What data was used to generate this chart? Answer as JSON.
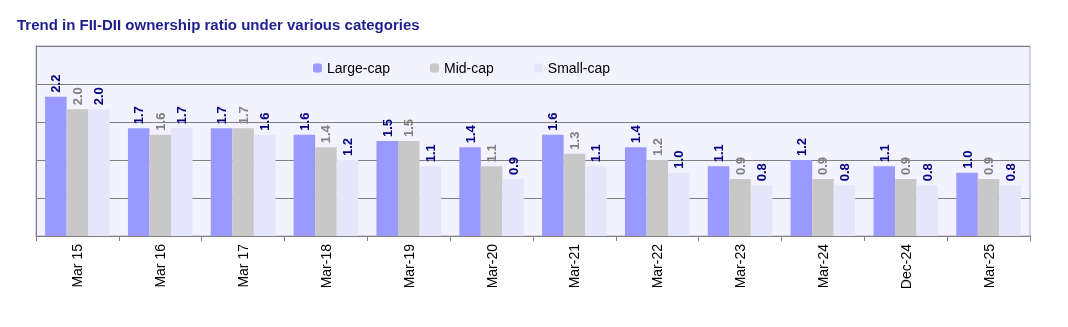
{
  "chart_data": {
    "type": "bar",
    "title": "Trend in FII-DII ownership ratio under various categories",
    "categories": [
      "Mar 15",
      "Mar 16",
      "Mar 17",
      "Mar-18",
      "Mar-19",
      "Mar-20",
      "Mar-21",
      "Mar-22",
      "Mar-23",
      "Mar-24",
      "Dec-24",
      "Mar-25"
    ],
    "series": [
      {
        "name": "Large-cap",
        "color": "#9999ff",
        "values": [
          2.2,
          1.7,
          1.7,
          1.6,
          1.5,
          1.4,
          1.6,
          1.4,
          1.1,
          1.2,
          1.1,
          1.0
        ],
        "value_labels": [
          "2.2",
          "1.7",
          "1.7",
          "1.6",
          "1.5",
          "1.4",
          "1.6",
          "1.4",
          "1.1",
          "1.2",
          "1.1",
          "1.0"
        ]
      },
      {
        "name": "Mid-cap",
        "color": "#c8c8c8",
        "values": [
          2.0,
          1.6,
          1.7,
          1.4,
          1.5,
          1.1,
          1.3,
          1.2,
          0.9,
          0.9,
          0.9,
          0.9
        ],
        "value_labels": [
          "2.0",
          "1.6",
          "1.7",
          "1.4",
          "1.5",
          "1.1",
          "1.3",
          "1.2",
          "0.9",
          "0.9",
          "0.9",
          "0.9"
        ]
      },
      {
        "name": "Small-cap",
        "color": "#e6e6fa",
        "values": [
          2.0,
          1.7,
          1.6,
          1.2,
          1.1,
          0.9,
          1.1,
          1.0,
          0.8,
          0.8,
          0.8,
          0.8
        ],
        "value_labels": [
          "2.0",
          "1.7",
          "1.6",
          "1.2",
          "1.1",
          "0.9",
          "1.1",
          "1.0",
          "0.8",
          "0.8",
          "0.8",
          "0.8"
        ]
      }
    ],
    "ylim": [
      0,
      3.0
    ],
    "yticks": [
      {
        "value": 0,
        "label": null
      },
      {
        "value": 0.6,
        "label": null
      },
      {
        "value": 1.2,
        "label": null
      },
      {
        "value": 1.8,
        "label": null
      },
      {
        "value": 2.4,
        "label": null
      },
      {
        "value": 3.0,
        "label": null
      }
    ],
    "grid": "y",
    "legend": "top",
    "tick_labels": "x"
  }
}
